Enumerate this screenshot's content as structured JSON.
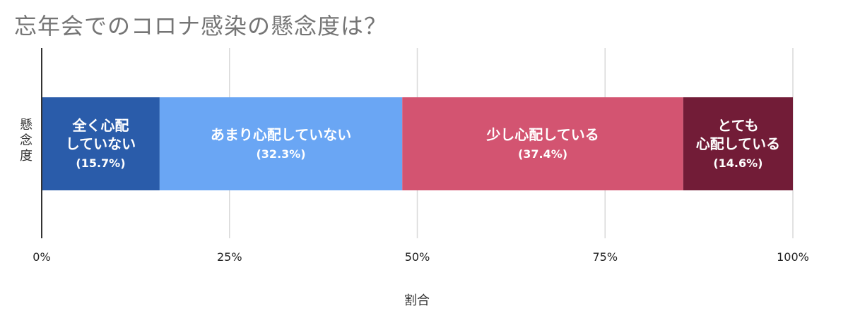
{
  "chart_data": {
    "type": "bar",
    "orientation": "horizontal",
    "stacked": "percent",
    "title": "忘年会でのコロナ感染の懸念度は？",
    "xlabel": "割合",
    "ylabel": "懸念度",
    "xlim": [
      0,
      100
    ],
    "x_ticks": [
      "0%",
      "25%",
      "50%",
      "75%",
      "100%"
    ],
    "grid": true,
    "series": [
      {
        "label_lines": [
          "全く心配",
          "していない"
        ],
        "value": 15.7,
        "value_label": "(15.7%)",
        "color": "#2a5caa"
      },
      {
        "label_lines": [
          "あまり心配していない"
        ],
        "value": 32.3,
        "value_label": "(32.3%)",
        "color": "#6aa6f4"
      },
      {
        "label_lines": [
          "少し心配している"
        ],
        "value": 37.4,
        "value_label": "(37.4%)",
        "color": "#d35471"
      },
      {
        "label_lines": [
          "とても",
          "心配している"
        ],
        "value": 14.6,
        "value_label": "(14.6%)",
        "color": "#721c37"
      }
    ]
  }
}
